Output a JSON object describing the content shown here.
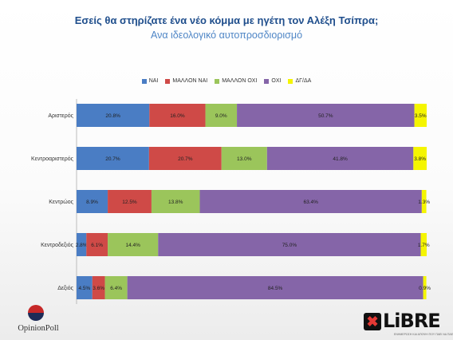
{
  "title": "Εσείς θα στηρίζατε  ένα νέο κόμμα με ηγέτη τον Αλέξη Τσίπρα;",
  "subtitle": "Ανα ιδεολογικό αυτοπροσδιορισμό",
  "colors": {
    "ΝΑΙ": "#4a7dc4",
    "ΜΑΛΛΟΝ ΝΑΙ": "#cf4a47",
    "ΜΑΛΛΟΝ ΟΧΙ": "#9bc55b",
    "ΟΧΙ": "#8565a8",
    "ΔΓ/ΔΑ": "#f5f500"
  },
  "chart_data": {
    "type": "bar",
    "orientation": "horizontal",
    "stacked": "100%",
    "categories": [
      "Αριστερός",
      "Κεντροαριστερός",
      "Κεντρώος",
      "Κεντροδεξιός",
      "Δεξιός"
    ],
    "series": [
      {
        "name": "ΝΑΙ",
        "values": [
          20.8,
          20.7,
          8.9,
          2.8,
          4.5
        ]
      },
      {
        "name": "ΜΑΛΛΟΝ ΝΑΙ",
        "values": [
          16.0,
          20.7,
          12.5,
          6.1,
          3.6
        ]
      },
      {
        "name": "ΜΑΛΛΟΝ ΟΧΙ",
        "values": [
          9.0,
          13.0,
          13.8,
          14.4,
          6.4
        ]
      },
      {
        "name": "ΟΧΙ",
        "values": [
          50.7,
          41.8,
          63.4,
          75.0,
          84.5
        ]
      },
      {
        "name": "ΔΓ/ΔΑ",
        "values": [
          3.5,
          3.8,
          1.3,
          1.7,
          0.9
        ]
      }
    ],
    "labels": [
      [
        "20.8%",
        "16.0%",
        "9.0%",
        "50.7%",
        "3.5%"
      ],
      [
        "20.7%",
        "20.7%",
        "13.0%",
        "41.8%",
        "3.8%"
      ],
      [
        "8.9%",
        "12.5%",
        "13.8%",
        "63.4%",
        "1.3%"
      ],
      [
        "2.8%",
        "6.1%",
        "14.4%",
        "75.0%",
        "1.7%"
      ],
      [
        "4.5%",
        "3.6%",
        "6.4%",
        "84.5%",
        "0.9%"
      ]
    ],
    "legend_position": "top",
    "grid": false
  },
  "logos": {
    "opinionpoll": "OpinionPoll",
    "libre": "LiBRE",
    "libre_tagline": "ΕΝΗΜΕΡΩΣΗ ΚΑΙ ΑΠΟΨΗ ΠΟΥ ΠΑΕΙ ΝΑ ΠΑΕΙ..."
  }
}
